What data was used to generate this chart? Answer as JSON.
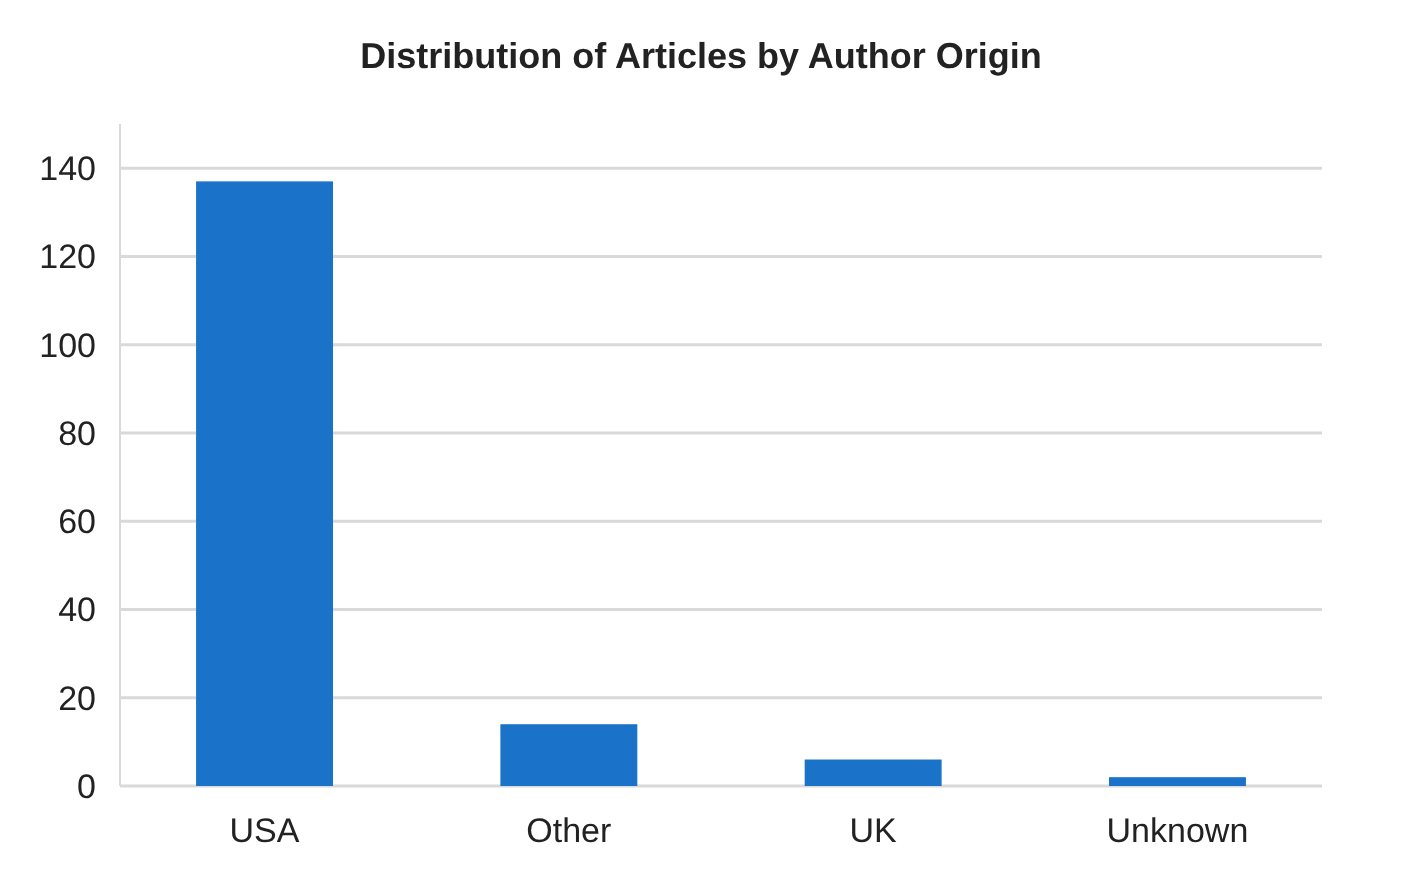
{
  "chart_data": {
    "type": "bar",
    "title": "Distribution of Articles by Author Origin",
    "categories": [
      "USA",
      "Other",
      "UK",
      "Unknown"
    ],
    "values": [
      137,
      14,
      6,
      2
    ],
    "color": "#1a73c8",
    "ylim": [
      0,
      150
    ],
    "yticks": [
      0,
      20,
      40,
      60,
      80,
      100,
      120,
      140
    ],
    "grid": "y"
  }
}
